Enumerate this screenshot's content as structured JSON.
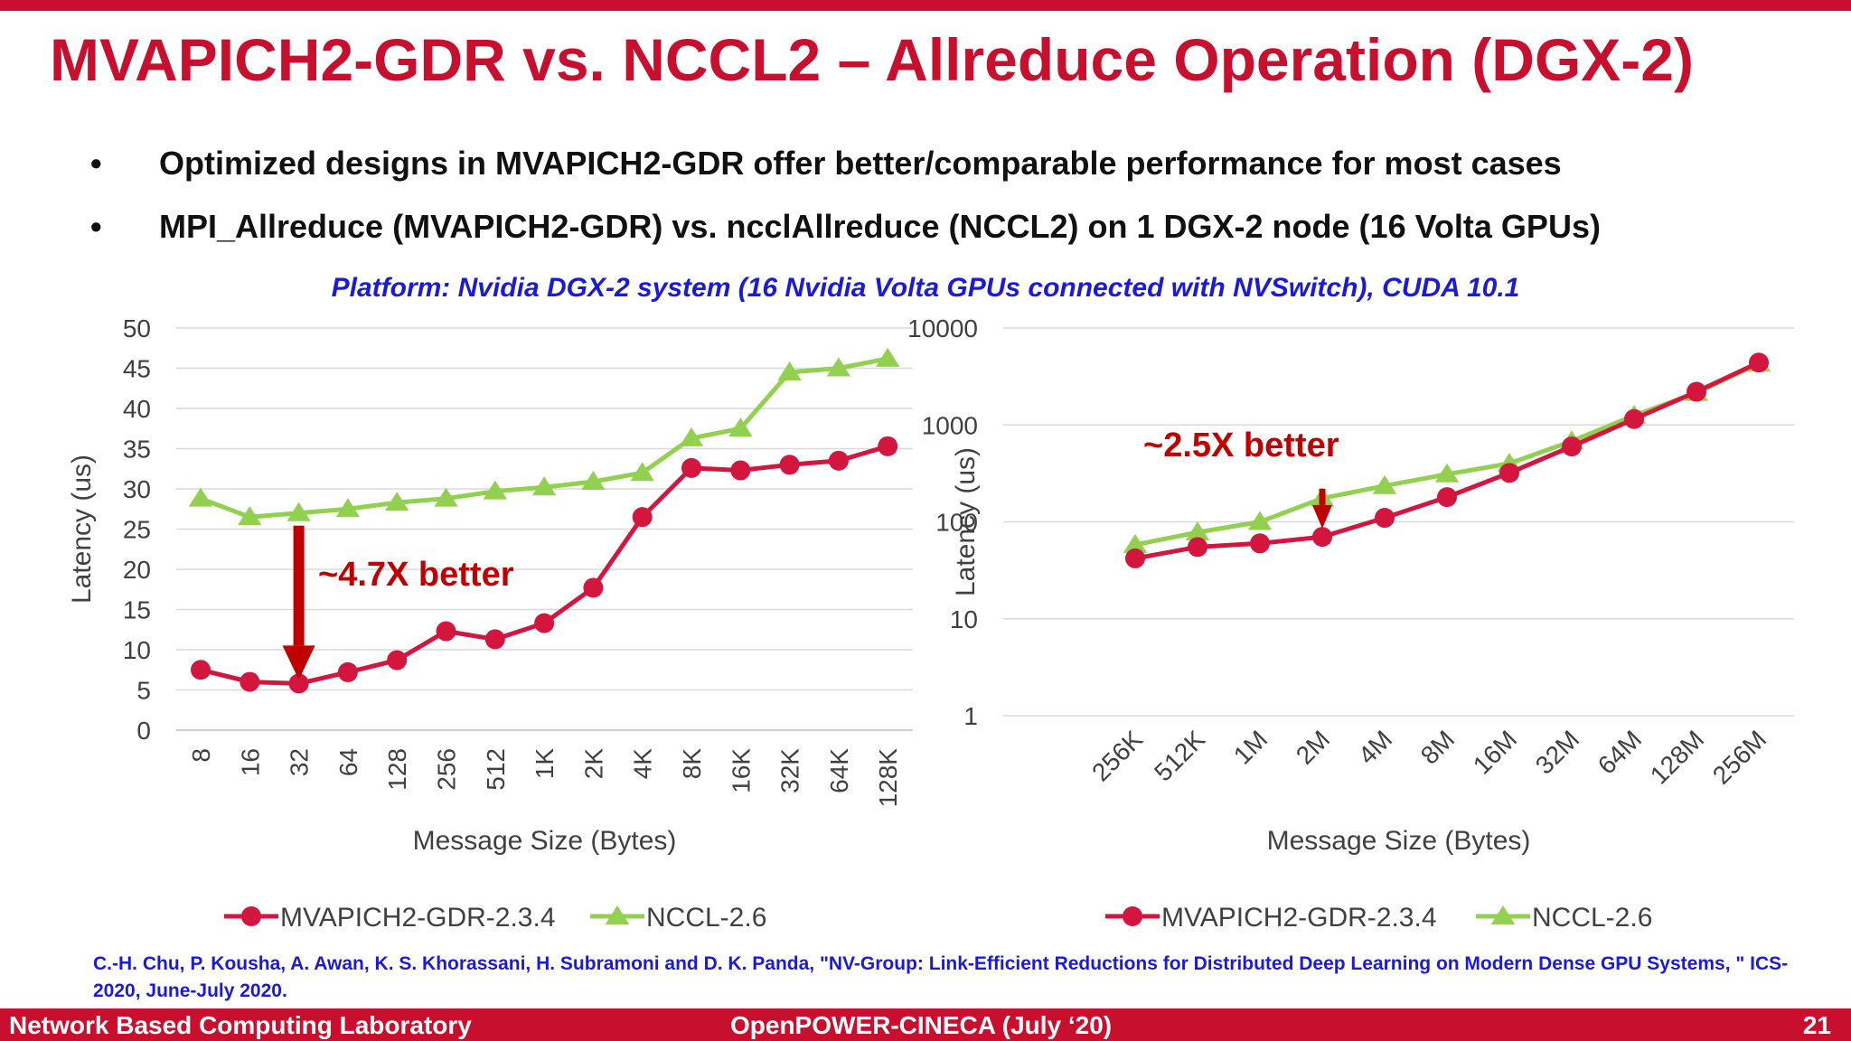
{
  "slide": {
    "title": "MVAPICH2-GDR vs. NCCL2 – Allreduce Operation (DGX-2)",
    "bullets": [
      "Optimized designs in MVAPICH2-GDR offer better/comparable performance for most cases",
      "MPI_Allreduce (MVAPICH2-GDR) vs. ncclAllreduce (NCCL2) on 1 DGX-2 node (16 Volta GPUs)"
    ],
    "bullet_symbol": "•",
    "platform": "Platform: Nvidia DGX-2 system (16 Nvidia Volta GPUs connected with NVSwitch), CUDA 10.1",
    "reference": "C.-H. Chu, P. Kousha, A. Awan, K. S. Khorassani, H. Subramoni and D. K. Panda, \"NV-Group: Link-Efficient Reductions for Distributed Deep Learning on Modern Dense GPU Systems, \" ICS-2020, June-July 2020.",
    "footer_left": "Network Based Computing Laboratory",
    "footer_center": "OpenPOWER-CINECA (July ‘20)",
    "page_number": "21"
  },
  "colors": {
    "accent": "#c8102e",
    "mvapich": "#d4163f",
    "nccl": "#92d050",
    "annotation": "#c00000",
    "platform_text": "#1a1adc"
  },
  "chart_data": [
    {
      "type": "line",
      "xlabel": "Message Size (Bytes)",
      "ylabel": "Latency (us)",
      "ylim": [
        0,
        50
      ],
      "yticks": [
        0,
        5,
        10,
        15,
        20,
        25,
        30,
        35,
        40,
        45,
        50
      ],
      "yscale": "linear",
      "grid": true,
      "legend": "bottom",
      "categories": [
        "8",
        "16",
        "32",
        "64",
        "128",
        "256",
        "512",
        "1K",
        "2K",
        "4K",
        "8K",
        "16K",
        "32K",
        "64K",
        "128K"
      ],
      "series": [
        {
          "name": "MVAPICH2-GDR-2.3.4",
          "values": [
            7.5,
            6.0,
            5.8,
            7.2,
            8.7,
            12.3,
            11.3,
            13.3,
            17.7,
            26.5,
            32.6,
            32.3,
            33.0,
            33.5,
            35.3
          ]
        },
        {
          "name": "NCCL-2.6",
          "values": [
            28.8,
            26.5,
            27.0,
            27.5,
            28.3,
            28.8,
            29.7,
            30.2,
            30.9,
            32.0,
            36.3,
            37.5,
            44.5,
            45.0,
            46.2
          ]
        }
      ],
      "annotation": {
        "text": "~4.7X better",
        "category_index": 2,
        "arrow_from": 27.0,
        "arrow_to": 5.8
      }
    },
    {
      "type": "line",
      "xlabel": "Message Size (Bytes)",
      "ylabel": "Latency (us)",
      "ylim": [
        1,
        10000
      ],
      "yticks": [
        1,
        10,
        100,
        1000,
        10000
      ],
      "yscale": "log",
      "grid": true,
      "legend": "bottom",
      "categories": [
        "256K",
        "512K",
        "1M",
        "2M",
        "4M",
        "8M",
        "16M",
        "32M",
        "64M",
        "128M",
        "256M"
      ],
      "series": [
        {
          "name": "MVAPICH2-GDR-2.3.4",
          "values": [
            42,
            55,
            60,
            70,
            110,
            180,
            320,
            600,
            1150,
            2200,
            4400
          ]
        },
        {
          "name": "NCCL-2.6",
          "values": [
            58,
            78,
            100,
            175,
            235,
            310,
            400,
            680,
            1250,
            2150,
            4300
          ]
        }
      ],
      "annotation": {
        "text": "~2.5X better",
        "category_index": 3,
        "arrow_from": 220,
        "arrow_to": 75
      }
    }
  ]
}
